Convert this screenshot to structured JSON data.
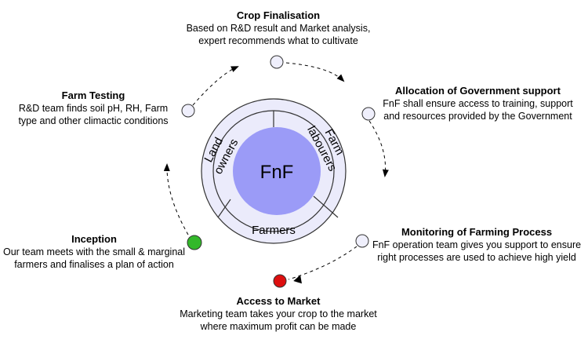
{
  "center": {
    "label": "FnF",
    "segments": {
      "left": "Land owners",
      "right": "Farm labourers",
      "bottom": "Farmers"
    }
  },
  "steps": [
    {
      "title": "Crop Finalisation",
      "lines": [
        "Based on R&D result and Market analysis,",
        "expert recommends what to cultivate"
      ]
    },
    {
      "title": "Allocation of Government support",
      "lines": [
        "FnF shall ensure access to training, support",
        "and resources provided by the Government"
      ]
    },
    {
      "title": "Monitoring of Farming Process",
      "lines": [
        "FnF operation team gives you support to ensure",
        "right processes are used to achieve high yield"
      ]
    },
    {
      "title": "Access to Market",
      "lines": [
        "Marketing team takes your crop to the market",
        "where maximum profit can be made"
      ]
    },
    {
      "title": "Inception",
      "lines": [
        "Our team meets with the small & marginal",
        "farmers and finalises a plan of action"
      ]
    },
    {
      "title": "Farm Testing",
      "lines": [
        "R&D team finds soil pH, RH, Farm",
        "type and other climactic conditions"
      ]
    }
  ],
  "colors": {
    "ring_fill": "#ebebfb",
    "center_fill": "#9b9bf7",
    "node_fill": "#efeffc",
    "start_node": "#33b82a",
    "market_node": "#dd0f0f"
  }
}
